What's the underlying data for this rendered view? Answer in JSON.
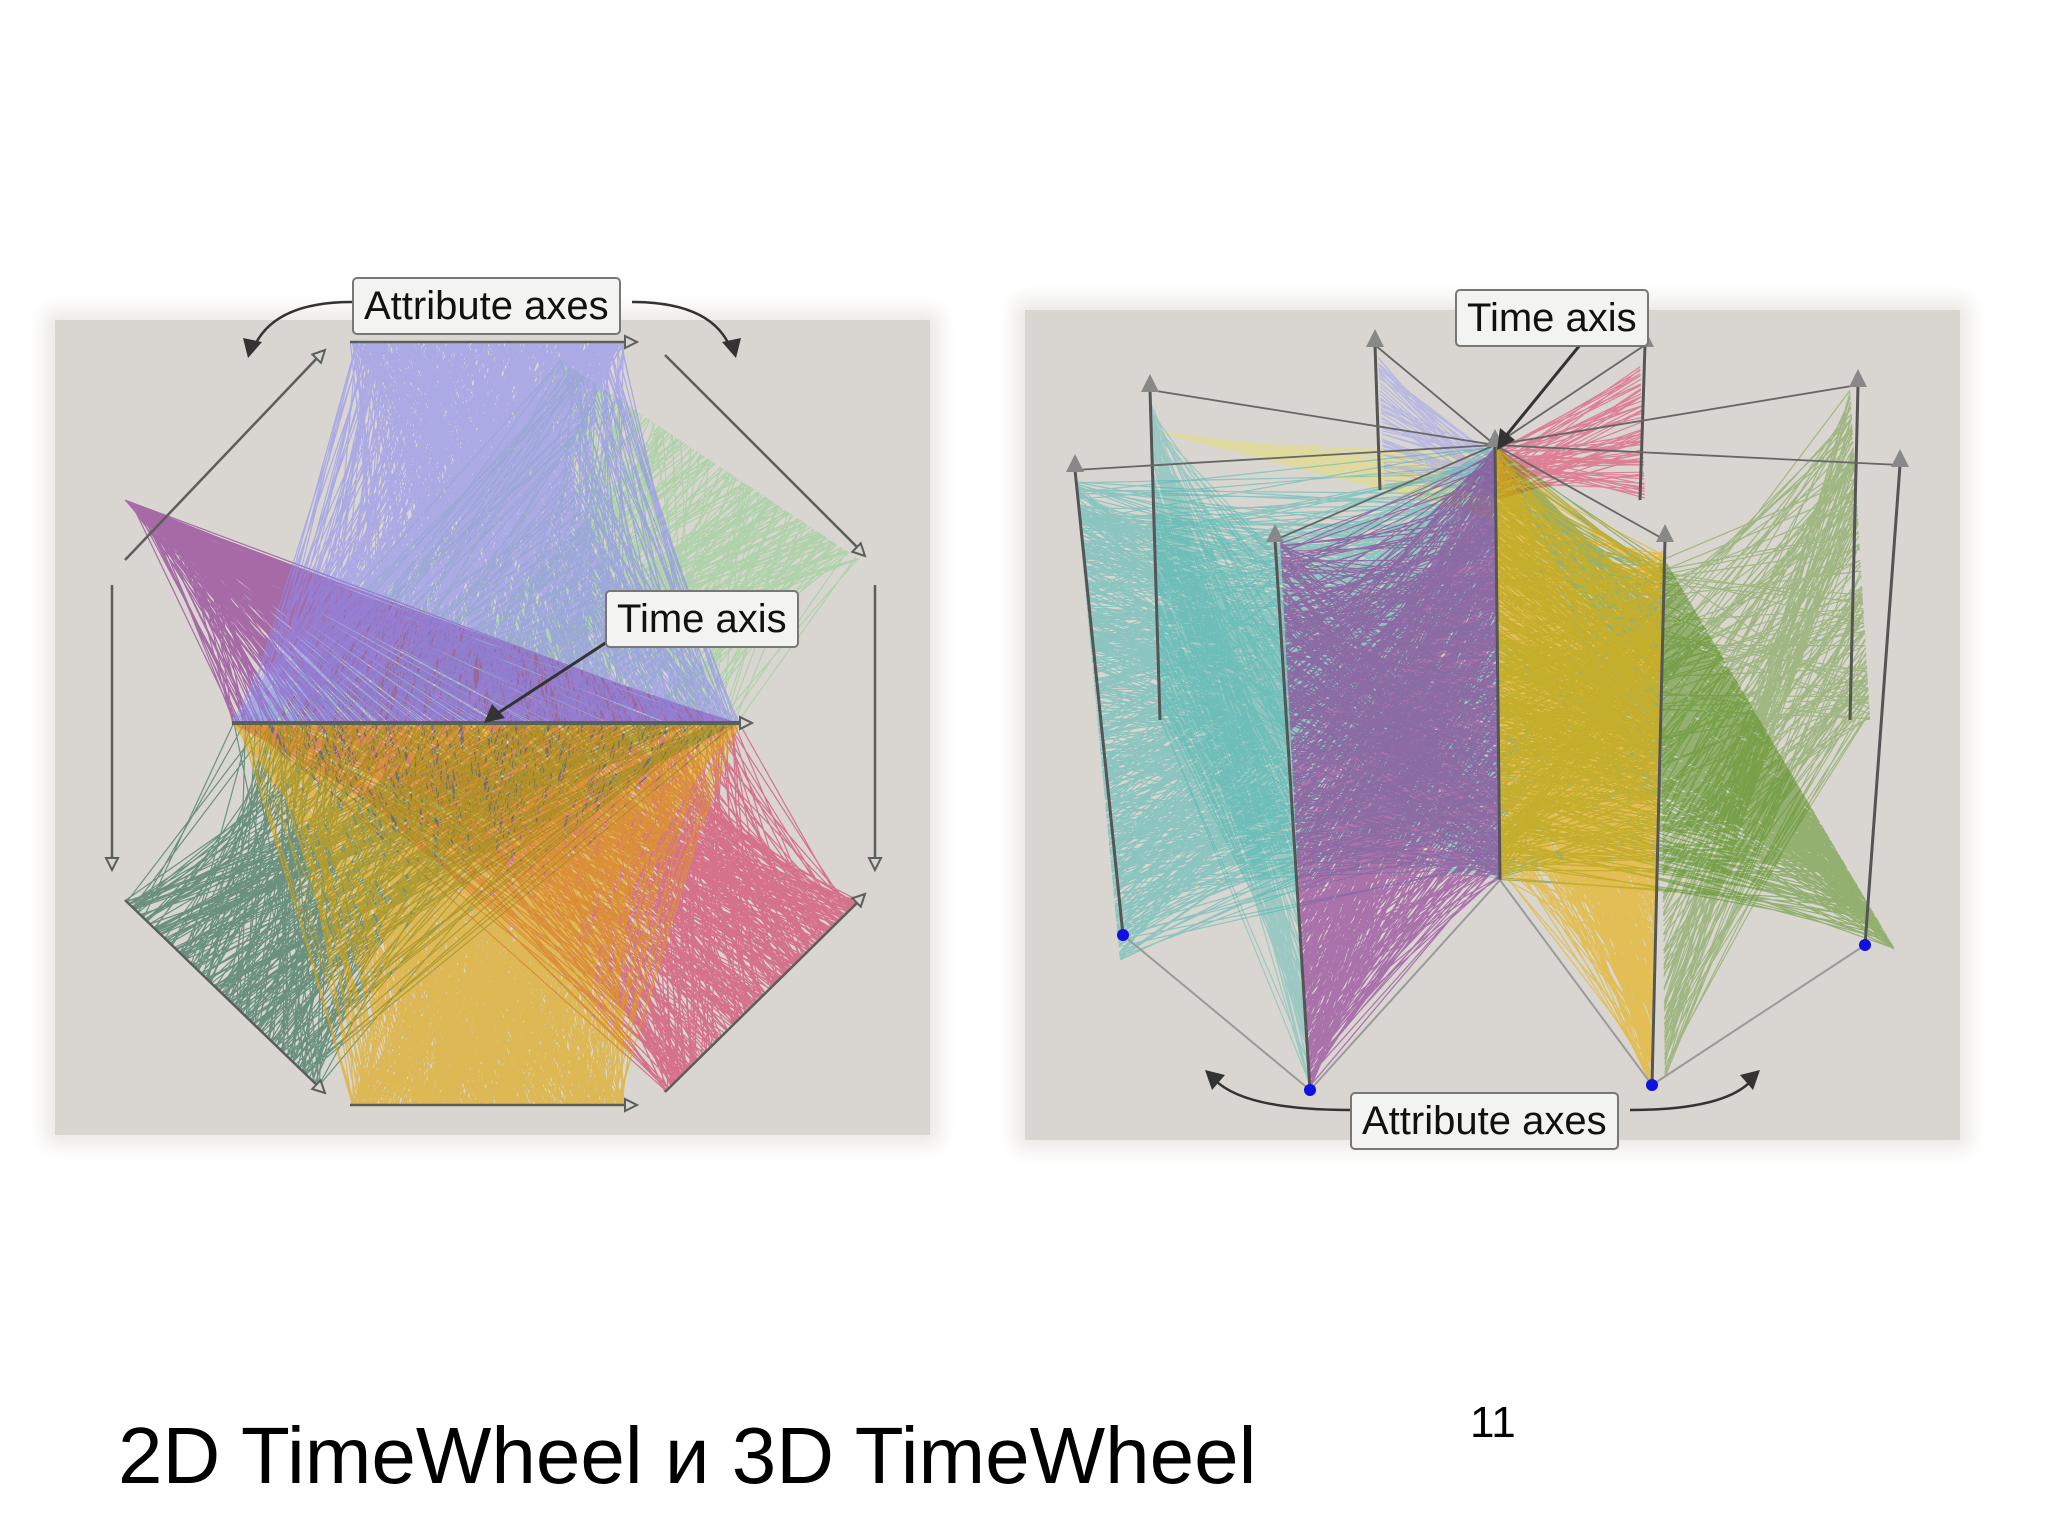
{
  "slide": {
    "title": "2D TimeWheel и 3D TimeWheel",
    "page_number": "11"
  },
  "left_figure": {
    "callouts": {
      "attribute_axes": "Attribute axes",
      "time_axis": "Time axis"
    },
    "colors": {
      "blue": "#8c8cf2",
      "purple": "#8a2f8f",
      "green_light": "#8ecf8a",
      "green_dark": "#2f6b52",
      "orange": "#e0a300",
      "red": "#d22f5a"
    }
  },
  "right_figure": {
    "callouts": {
      "time_axis": "Time axis",
      "attribute_axes": "Attribute axes"
    },
    "colors": {
      "teal": "#3fb3b0",
      "purple": "#8a2f8f",
      "orange": "#e8ae00",
      "green": "#4e8a10",
      "pink": "#e0466e",
      "blue_light": "#9a9af5",
      "yellow": "#e8e060",
      "axis_dot": "#1010e0"
    }
  }
}
